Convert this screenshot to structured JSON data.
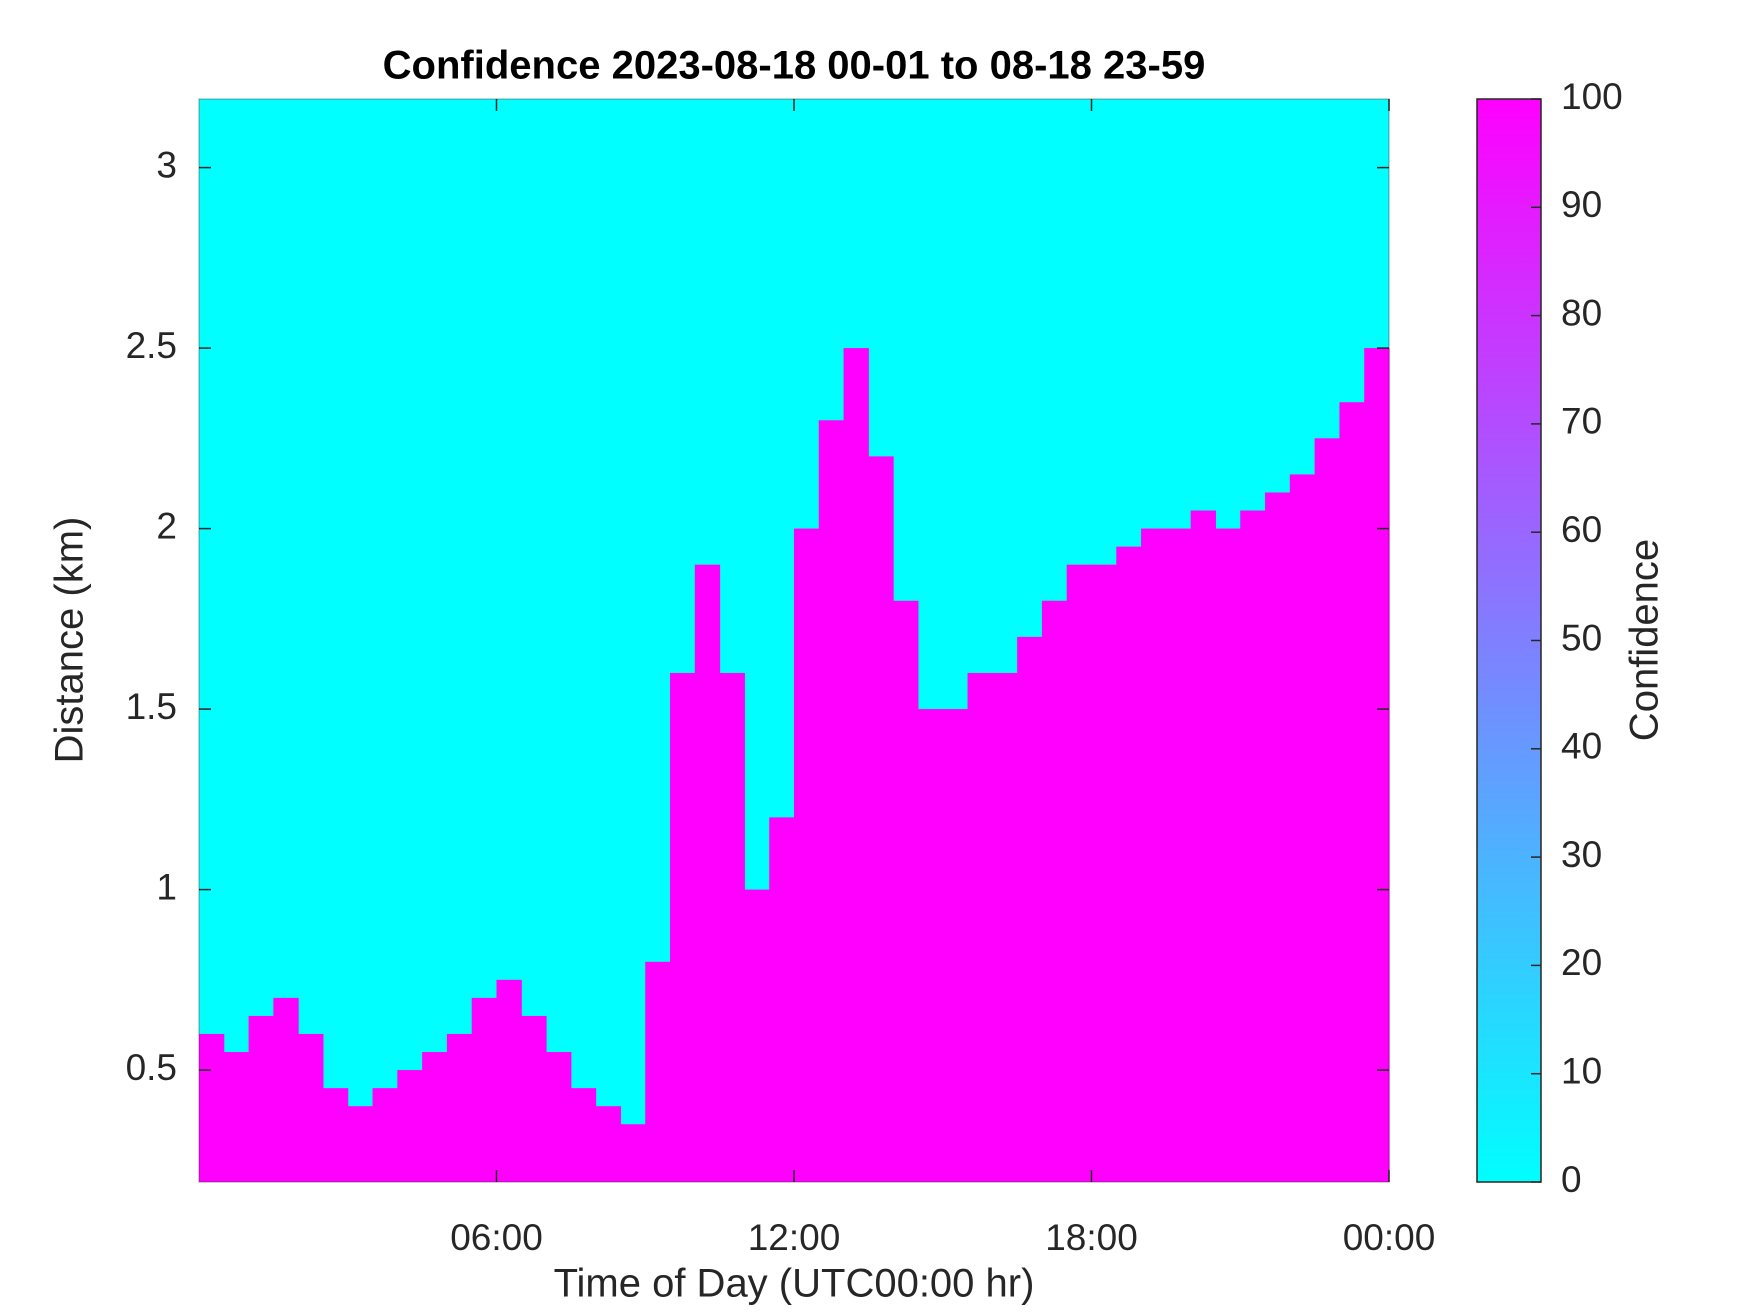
{
  "chart_data": {
    "type": "heatmap",
    "title": "Confidence 2023-08-18 00-01 to 08-18 23-59",
    "x_label": "Time of Day (UTC00:00 hr)",
    "y_label": "Distance (km)",
    "colorbar_label": "Confidence",
    "x": [
      0,
      0.5,
      1,
      1.5,
      2,
      2.5,
      3,
      3.5,
      4,
      4.5,
      5,
      5.5,
      6,
      6.5,
      7,
      7.5,
      8,
      8.5,
      9,
      9.5,
      10,
      10.5,
      11,
      11.5,
      12,
      12.5,
      13,
      13.5,
      14,
      14.5,
      15,
      15.5,
      16,
      16.5,
      17,
      17.5,
      18,
      18.5,
      19,
      19.5,
      20,
      20.5,
      21,
      21.5,
      22,
      22.5,
      23,
      23.5
    ],
    "values": [
      0.6,
      0.55,
      0.65,
      0.7,
      0.6,
      0.45,
      0.4,
      0.45,
      0.5,
      0.55,
      0.6,
      0.7,
      0.75,
      0.65,
      0.55,
      0.45,
      0.4,
      0.35,
      0.8,
      1.6,
      1.9,
      1.6,
      1.0,
      1.2,
      2.0,
      2.3,
      2.5,
      2.2,
      1.8,
      1.5,
      1.5,
      1.6,
      1.6,
      1.7,
      1.8,
      1.9,
      1.9,
      1.95,
      2.0,
      2.0,
      2.05,
      2.0,
      2.05,
      2.1,
      2.15,
      2.25,
      2.35,
      2.5
    ],
    "colors": [
      "#00ffff",
      "#ff00ff"
    ],
    "xlim": [
      0,
      24
    ],
    "xticks": [
      {
        "value": 6,
        "label": "06:00"
      },
      {
        "value": 12,
        "label": "12:00"
      },
      {
        "value": 18,
        "label": "18:00"
      },
      {
        "value": 24,
        "label": "00:00"
      }
    ],
    "ylim": [
      0.19,
      3.19
    ],
    "yticks": [
      0.5,
      1,
      1.5,
      2,
      2.5,
      3
    ],
    "clim": [
      0,
      100
    ],
    "cticks": [
      0,
      10,
      20,
      30,
      40,
      50,
      60,
      70,
      80,
      90,
      100
    ]
  }
}
